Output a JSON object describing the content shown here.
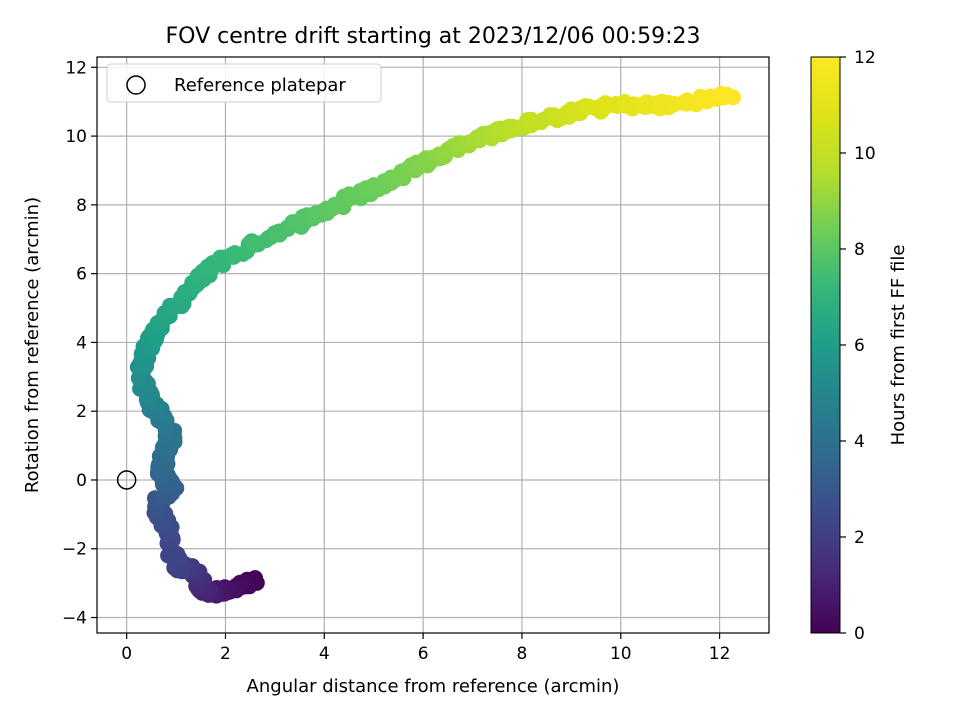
{
  "chart_data": {
    "type": "scatter",
    "title": "FOV centre drift starting at 2023/12/06 00:59:23",
    "xlabel": "Angular distance from reference (arcmin)",
    "ylabel": "Rotation from reference (arcmin)",
    "xlim": [
      -0.6,
      13.0
    ],
    "ylim": [
      -4.45,
      12.3
    ],
    "xticks": [
      0,
      2,
      4,
      6,
      8,
      10,
      12
    ],
    "yticks": [
      -4,
      -2,
      0,
      2,
      4,
      6,
      8,
      10,
      12
    ],
    "grid": true,
    "legend": {
      "position": "top-left",
      "entries": [
        {
          "label": "Reference platepar",
          "marker": "open-circle"
        }
      ]
    },
    "reference_point": {
      "x": 0,
      "y": 0
    },
    "colorbar": {
      "label": "Hours from first FF file",
      "colormap": "viridis",
      "range": [
        0,
        12
      ],
      "ticks": [
        0,
        2,
        4,
        6,
        8,
        10,
        12
      ]
    },
    "track_keypoints": [
      {
        "x": 2.6,
        "y": -2.95,
        "h": 0.0
      },
      {
        "x": 2.0,
        "y": -3.2,
        "h": 0.5
      },
      {
        "x": 1.6,
        "y": -3.3,
        "h": 1.0
      },
      {
        "x": 1.5,
        "y": -3.0,
        "h": 1.3
      },
      {
        "x": 1.3,
        "y": -2.55,
        "h": 1.7
      },
      {
        "x": 1.0,
        "y": -2.55,
        "h": 2.1
      },
      {
        "x": 0.8,
        "y": -1.3,
        "h": 2.5
      },
      {
        "x": 0.6,
        "y": -0.75,
        "h": 2.8
      },
      {
        "x": 0.9,
        "y": -0.3,
        "h": 3.2
      },
      {
        "x": 0.7,
        "y": 0.3,
        "h": 3.6
      },
      {
        "x": 0.9,
        "y": 1.3,
        "h": 4.1
      },
      {
        "x": 0.6,
        "y": 2.0,
        "h": 4.6
      },
      {
        "x": 0.4,
        "y": 2.5,
        "h": 5.0
      },
      {
        "x": 0.3,
        "y": 3.4,
        "h": 5.5
      },
      {
        "x": 0.6,
        "y": 4.4,
        "h": 6.1
      },
      {
        "x": 1.1,
        "y": 5.3,
        "h": 6.6
      },
      {
        "x": 1.8,
        "y": 6.3,
        "h": 7.1
      },
      {
        "x": 3.0,
        "y": 7.2,
        "h": 7.6
      },
      {
        "x": 4.0,
        "y": 7.8,
        "h": 8.0
      },
      {
        "x": 5.0,
        "y": 8.5,
        "h": 8.3
      },
      {
        "x": 6.0,
        "y": 9.2,
        "h": 8.7
      },
      {
        "x": 7.0,
        "y": 9.9,
        "h": 9.3
      },
      {
        "x": 8.0,
        "y": 10.3,
        "h": 9.8
      },
      {
        "x": 9.0,
        "y": 10.7,
        "h": 10.5
      },
      {
        "x": 10.0,
        "y": 10.9,
        "h": 11.0
      },
      {
        "x": 11.0,
        "y": 10.9,
        "h": 11.5
      },
      {
        "x": 12.3,
        "y": 11.2,
        "h": 12.0
      }
    ],
    "marker_size": 8,
    "series": [
      {
        "points_per_segment": 20,
        "jitter_x": 0.22,
        "jitter_y": 0.22
      }
    ]
  }
}
